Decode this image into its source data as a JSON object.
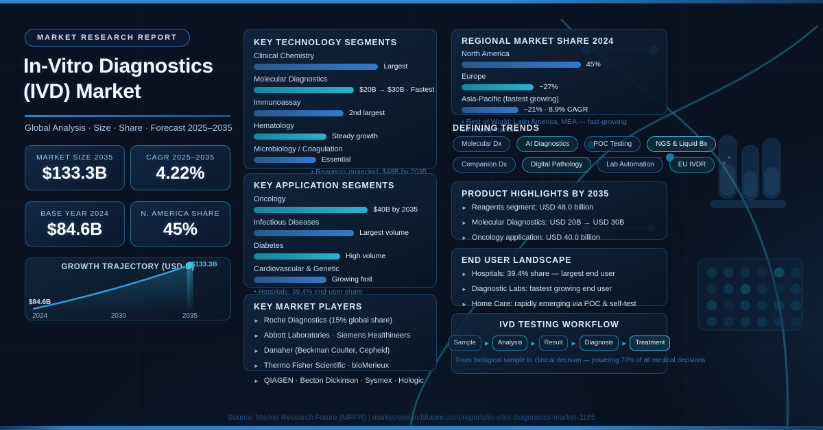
{
  "badge": "MARKET RESEARCH REPORT",
  "title_lines": [
    "In-Vitro Diagnostics",
    "(IVD) Market"
  ],
  "subtitle": "Global Analysis · Size · Share · Forecast 2025–2035",
  "stats": [
    {
      "label": "MARKET SIZE 2035",
      "value": "$133.3B",
      "accent": "blue"
    },
    {
      "label": "CAGR 2025–2035",
      "value": "4.22%",
      "accent": "teal"
    },
    {
      "label": "BASE YEAR 2024",
      "value": "$84.6B",
      "accent": "blue"
    },
    {
      "label": "N. AMERICA SHARE",
      "value": "45%",
      "accent": "teal"
    }
  ],
  "chart_data": [
    {
      "id": "growth",
      "type": "area",
      "title": "GROWTH TRAJECTORY (USD B)",
      "x": [
        2024,
        2030,
        2035
      ],
      "values": [
        84.6,
        108.4,
        133.3
      ],
      "cagr_pct": 4.22,
      "start_label": "$84.6B",
      "end_label": "$133.3B",
      "xticks": [
        "2024",
        "2030",
        "2035"
      ],
      "line_color": "#2f9fd8",
      "grid": false,
      "legend": "none"
    },
    {
      "id": "tech",
      "type": "bar",
      "title": "KEY TECHNOLOGY SEGMENTS",
      "categories": [
        "Clinical Chemistry",
        "Molecular Diagnostics",
        "Immunoassay",
        "Hematology",
        "Microbiology / Coagulation"
      ],
      "notes": [
        "Largest",
        "$20B → $30B · Fastest",
        "2nd largest",
        "Steady growth",
        "Essential"
      ],
      "rel_widths": [
        72,
        58,
        52,
        42,
        36
      ],
      "colors": [
        "blue",
        "teal",
        "blue",
        "teal",
        "blue"
      ],
      "footnote": "• Reagents projected: $48B by 2035"
    },
    {
      "id": "apps",
      "type": "bar",
      "title": "KEY APPLICATION SEGMENTS",
      "categories": [
        "Oncology",
        "Infectious Diseases",
        "Diabetes",
        "Cardiovascular & Genetic"
      ],
      "notes": [
        "$40B by 2035",
        "Largest volume",
        "High volume",
        "Growing fast"
      ],
      "rel_widths": [
        66,
        58,
        50,
        42
      ],
      "colors": [
        "teal",
        "blue",
        "teal",
        "blue"
      ],
      "footnote": "• Hospitals: 39.4% end-user share"
    },
    {
      "id": "regional",
      "type": "bar",
      "title": "REGIONAL MARKET SHARE 2024",
      "categories": [
        "North America",
        "Europe",
        "Asia-Pacific (fastest growing)"
      ],
      "notes": [
        "45%",
        "~27%",
        "~21% · 8.9% CAGR"
      ],
      "rel_widths": [
        61,
        37,
        29
      ],
      "colors": [
        "blue",
        "teal",
        "blue"
      ],
      "footnote": "• Rest of World: Latin America, MEA — fast-growing emerging markets"
    }
  ],
  "players": {
    "title": "KEY MARKET PLAYERS",
    "items": [
      "Roche Diagnostics (15% global share)",
      "Abbott Laboratories · Siemens Healthineers",
      "Danaher (Beckman Coulter, Cepheid)",
      "Thermo Fisher Scientific · bioMerieux",
      "QIAGEN · Becton Dickinson · Sysmex · Hologic"
    ]
  },
  "trends": {
    "title": "DEFINING TRENDS",
    "chips": [
      {
        "label": "Molecular Dx",
        "style": "blue"
      },
      {
        "label": "AI Diagnostics",
        "style": "teal"
      },
      {
        "label": "POC Testing",
        "style": "blue"
      },
      {
        "label": "NGS & Liquid Bx",
        "style": "teal-bright"
      },
      {
        "label": "Companion Dx",
        "style": "blue"
      },
      {
        "label": "Digital Pathology",
        "style": "teal"
      },
      {
        "label": "Lab Automation",
        "style": "blue"
      },
      {
        "label": "EU IVDR",
        "style": "teal"
      }
    ]
  },
  "highlights": {
    "title": "PRODUCT HIGHLIGHTS BY 2035",
    "items": [
      "Reagents segment: USD 48.0 billion",
      "Molecular Diagnostics: USD 20B → USD 30B",
      "Oncology application: USD 40.0 billion"
    ]
  },
  "end_users": {
    "title": "END USER LANDSCAPE",
    "items": [
      "Hospitals: 39.4% share — largest end user",
      "Diagnostic Labs: fastest growing end user",
      "Home Care: rapidly emerging via POC & self-test"
    ]
  },
  "workflow": {
    "title": "IVD TESTING WORKFLOW",
    "steps": [
      {
        "label": "Sample",
        "style": "blue"
      },
      {
        "label": "Analysis",
        "style": "teal"
      },
      {
        "label": "Result",
        "style": "blue"
      },
      {
        "label": "Diagnosis",
        "style": "teal"
      },
      {
        "label": "Treatment",
        "style": "teal-bright"
      }
    ],
    "caption": "From biological sample to clinical decision — powering 70% of all medical decisions"
  },
  "footer": "Source: Market Research Future (MRFR) | marketresearchfuture.com/reports/in-vitro-diagnostics-market-1165",
  "colors": {
    "background": "#081220",
    "bar_blue": "#2f79c9",
    "bar_teal": "#22a7c4",
    "accent_line": "#2f86d2",
    "panel_border": "#1c4264",
    "muted_note": "#3e6da6"
  }
}
